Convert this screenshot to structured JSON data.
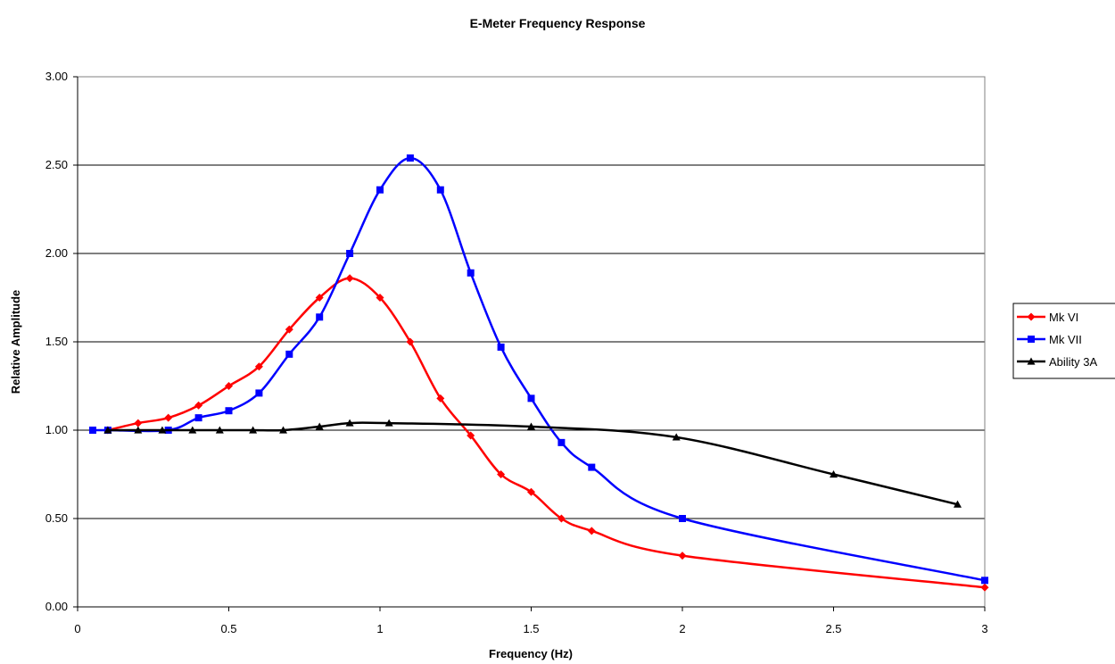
{
  "chart_data": {
    "type": "line",
    "title": "E-Meter Frequency Response",
    "xlabel": "Frequency (Hz)",
    "ylabel": "Relative Amplitude",
    "xlim": [
      0,
      3
    ],
    "ylim": [
      0,
      3
    ],
    "x_ticks": [
      "0",
      "0.5",
      "1",
      "1.5",
      "2",
      "2.5",
      "3"
    ],
    "y_ticks": [
      "0.00",
      "0.50",
      "1.00",
      "1.50",
      "2.00",
      "2.50",
      "3.00"
    ],
    "grid": "horizontal",
    "legend_position": "right",
    "series": [
      {
        "name": "Mk VI",
        "color": "#ff0000",
        "marker": "diamond",
        "x": [
          0.1,
          0.2,
          0.3,
          0.4,
          0.5,
          0.6,
          0.7,
          0.8,
          0.9,
          1.0,
          1.1,
          1.2,
          1.3,
          1.4,
          1.5,
          1.6,
          1.7,
          2.0,
          3.0
        ],
        "y": [
          1.0,
          1.04,
          1.07,
          1.14,
          1.25,
          1.36,
          1.57,
          1.75,
          1.86,
          1.75,
          1.5,
          1.18,
          0.97,
          0.75,
          0.65,
          0.5,
          0.43,
          0.29,
          0.11
        ]
      },
      {
        "name": "Mk VII",
        "color": "#0000ff",
        "marker": "square",
        "x": [
          0.05,
          0.1,
          0.3,
          0.4,
          0.5,
          0.6,
          0.7,
          0.8,
          0.9,
          1.0,
          1.1,
          1.2,
          1.3,
          1.4,
          1.5,
          1.6,
          1.7,
          2.0,
          3.0
        ],
        "y": [
          1.0,
          1.0,
          1.0,
          1.07,
          1.11,
          1.21,
          1.43,
          1.64,
          2.0,
          2.36,
          2.54,
          2.36,
          1.89,
          1.47,
          1.18,
          0.93,
          0.79,
          0.5,
          0.15
        ]
      },
      {
        "name": "Ability 3A",
        "color": "#000000",
        "marker": "triangle",
        "x": [
          0.1,
          0.2,
          0.28,
          0.38,
          0.47,
          0.58,
          0.68,
          0.8,
          0.9,
          1.03,
          1.5,
          1.98,
          2.5,
          2.91
        ],
        "y": [
          1.0,
          1.0,
          1.0,
          1.0,
          1.0,
          1.0,
          1.0,
          1.02,
          1.04,
          1.04,
          1.02,
          0.96,
          0.75,
          0.58
        ]
      }
    ]
  }
}
